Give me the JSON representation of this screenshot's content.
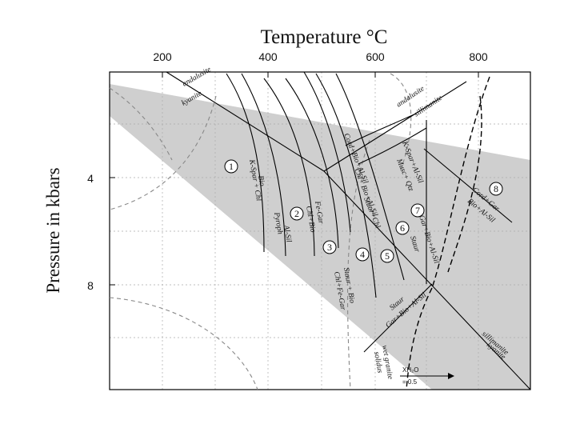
{
  "title": "Temperature °C",
  "ylabel": "Pressure in kbars",
  "x_ticks": [
    "200",
    "400",
    "600",
    "800"
  ],
  "y_ticks": [
    "4",
    "8"
  ],
  "zones": [
    "1",
    "2",
    "3",
    "4",
    "5",
    "6",
    "7",
    "8"
  ],
  "reactions": {
    "andalusite_kyanite": [
      "andalusite",
      "kyanite"
    ],
    "andalusite_sillimanite": [
      "andalusite",
      "sillimanite"
    ],
    "sillimanite_kyanite": [
      "sillimanite",
      "kyanite"
    ],
    "r1": [
      "Bio",
      "K-Spar + Chl"
    ],
    "r2": [
      "Al-Sil",
      "Pyroph"
    ],
    "r3": [
      "Fe-Gar",
      "Chl+Bio"
    ],
    "r4": [
      "Staur + Bio",
      "Chl+Fe-Gar"
    ],
    "r5": [
      "Cord+Bio+Al-Sil",
      "Chl+ Bio+Al-Sil"
    ],
    "r6": [
      "Staur+Chl",
      ""
    ],
    "r7": [
      "K-Spar+Al-Sil",
      "Musc+ Qtz"
    ],
    "r8": [
      "Gar+Bio+Al-Sil",
      "Staur"
    ],
    "r9": [
      "Cord+Gar",
      "Bio+Al-Sil"
    ],
    "r10": [
      "Staur",
      "Gar+Bio+Al-Sil"
    ],
    "wet_granite": [
      "wet granite",
      "solidus"
    ]
  },
  "xh2o": [
    "XH₂O",
    "= 0.5"
  ]
}
